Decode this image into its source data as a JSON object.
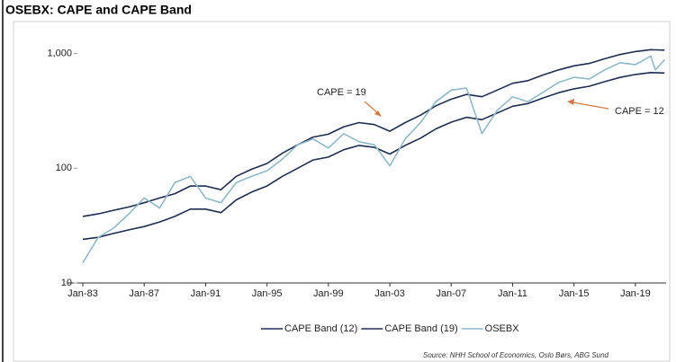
{
  "chart_data": {
    "type": "line",
    "title": "OSEBX: CAPE and CAPE Band",
    "annotations": [
      "CAPE = 19",
      "CAPE = 12"
    ],
    "source": "Source: NHH School of Economics, Oslo Børs, ABG Sund",
    "yscale": "log",
    "grid": false,
    "x": [
      1983,
      1984,
      1985,
      1986,
      1987,
      1988,
      1989,
      1990,
      1991,
      1992,
      1993,
      1994,
      1995,
      1996,
      1997,
      1998,
      1999,
      2000,
      2001,
      2002,
      2003,
      2004,
      2005,
      2006,
      2007,
      2008,
      2009,
      2010,
      2011,
      2012,
      2013,
      2014,
      2015,
      2016,
      2017,
      2018,
      2019,
      2020,
      2020.3,
      2020.9
    ],
    "xlim": [
      1983,
      2021
    ],
    "xticks": [
      {
        "value": 1983,
        "label": "Jan-83"
      },
      {
        "value": 1987,
        "label": "Jan-87"
      },
      {
        "value": 1991,
        "label": "Jan-91"
      },
      {
        "value": 1995,
        "label": "Jan-95"
      },
      {
        "value": 1999,
        "label": "Jan-99"
      },
      {
        "value": 2003,
        "label": "Jan-03"
      },
      {
        "value": 2007,
        "label": "Jan-07"
      },
      {
        "value": 2011,
        "label": "Jan-11"
      },
      {
        "value": 2015,
        "label": "Jan-15"
      },
      {
        "value": 2019,
        "label": "Jan-19"
      }
    ],
    "ylim": [
      10,
      1300
    ],
    "yticks": [
      10,
      100,
      {
        "value": 1000,
        "label": "1,000"
      }
    ],
    "series": [
      {
        "name": "CAPE Band (12)",
        "color": "#1f2d50",
        "values": [
          24,
          25,
          27,
          29,
          31,
          34,
          38,
          44,
          44,
          41,
          53,
          62,
          70,
          85,
          100,
          118,
          125,
          145,
          158,
          152,
          133,
          158,
          183,
          220,
          252,
          278,
          265,
          303,
          347,
          366,
          410,
          455,
          492,
          518,
          568,
          619,
          657,
          682,
          680,
          676
        ]
      },
      {
        "name": "CAPE Band (19)",
        "color": "#1f2d50",
        "values": [
          38,
          40,
          43,
          46,
          50,
          55,
          60,
          70,
          70,
          65,
          85,
          98,
          110,
          135,
          160,
          187,
          198,
          230,
          250,
          240,
          210,
          250,
          290,
          350,
          400,
          440,
          420,
          480,
          550,
          580,
          650,
          720,
          780,
          820,
          900,
          980,
          1040,
          1080,
          1075,
          1070
        ]
      },
      {
        "name": "OSEBX",
        "color": "#8fb8c9",
        "values": [
          15,
          25,
          30,
          40,
          55,
          45,
          75,
          85,
          55,
          50,
          75,
          85,
          95,
          120,
          160,
          180,
          150,
          200,
          170,
          160,
          105,
          180,
          250,
          380,
          480,
          500,
          200,
          320,
          420,
          380,
          460,
          560,
          620,
          600,
          720,
          830,
          800,
          950,
          720,
          880
        ]
      }
    ]
  }
}
